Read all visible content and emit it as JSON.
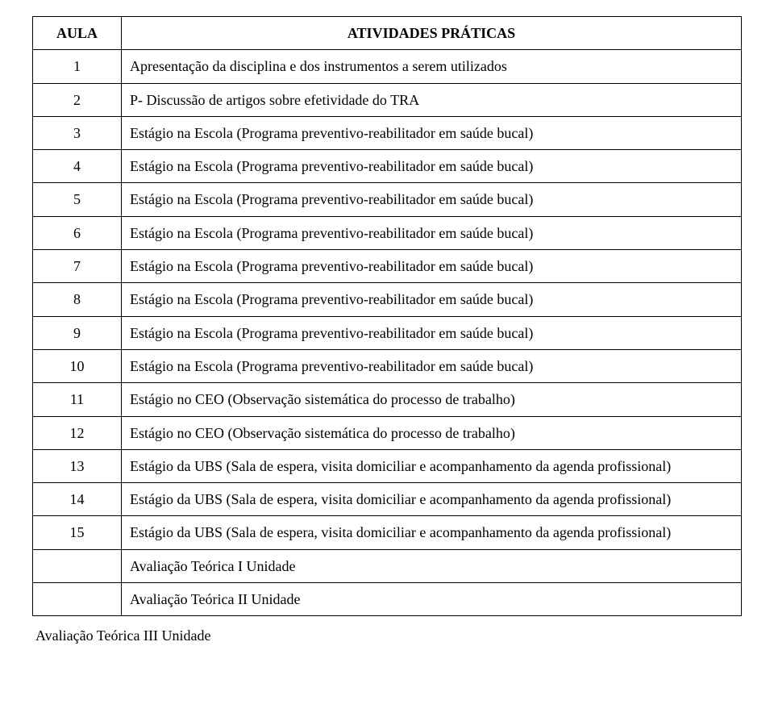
{
  "header": {
    "col1": "AULA",
    "col2": "ATIVIDADES PRÁTICAS"
  },
  "rows": [
    {
      "num": "1",
      "text": "Apresentação da disciplina e dos instrumentos a serem utilizados"
    },
    {
      "num": "2",
      "text": "P- Discussão de artigos sobre efetividade do TRA"
    },
    {
      "num": "3",
      "text": "Estágio na Escola (Programa preventivo-reabilitador em saúde bucal)"
    },
    {
      "num": "4",
      "text": "Estágio na Escola (Programa preventivo-reabilitador em saúde bucal)"
    },
    {
      "num": "5",
      "text": "Estágio na Escola (Programa preventivo-reabilitador em saúde bucal)"
    },
    {
      "num": "6",
      "text": "Estágio na Escola (Programa preventivo-reabilitador em saúde bucal)"
    },
    {
      "num": "7",
      "text": "Estágio na Escola (Programa preventivo-reabilitador em saúde bucal)"
    },
    {
      "num": "8",
      "text": "Estágio na Escola (Programa preventivo-reabilitador em saúde bucal)"
    },
    {
      "num": "9",
      "text": "Estágio na Escola (Programa preventivo-reabilitador em saúde bucal)"
    },
    {
      "num": "10",
      "text": "Estágio na Escola (Programa preventivo-reabilitador em saúde bucal)"
    },
    {
      "num": "11",
      "text": "Estágio no CEO (Observação sistemática do processo de trabalho)"
    },
    {
      "num": "12",
      "text": "Estágio no CEO (Observação sistemática do processo de trabalho)"
    },
    {
      "num": "13",
      "text": "Estágio da UBS (Sala de espera, visita domiciliar e acompanhamento da agenda profissional)"
    },
    {
      "num": "14",
      "text": "Estágio da UBS (Sala de espera, visita domiciliar e acompanhamento da agenda profissional)"
    },
    {
      "num": "15",
      "text": "Estágio da UBS (Sala de espera, visita domiciliar e acompanhamento da agenda profissional)"
    },
    {
      "num": "",
      "text": "Avaliação Teórica I Unidade"
    },
    {
      "num": "",
      "text": "Avaliação Teórica II Unidade"
    }
  ],
  "footer": {
    "text": "Avaliação Teórica III Unidade"
  },
  "style": {
    "font_family": "Times New Roman",
    "font_size_pt": 13,
    "border_color": "#000000",
    "background_color": "#ffffff",
    "text_color": "#000000"
  }
}
